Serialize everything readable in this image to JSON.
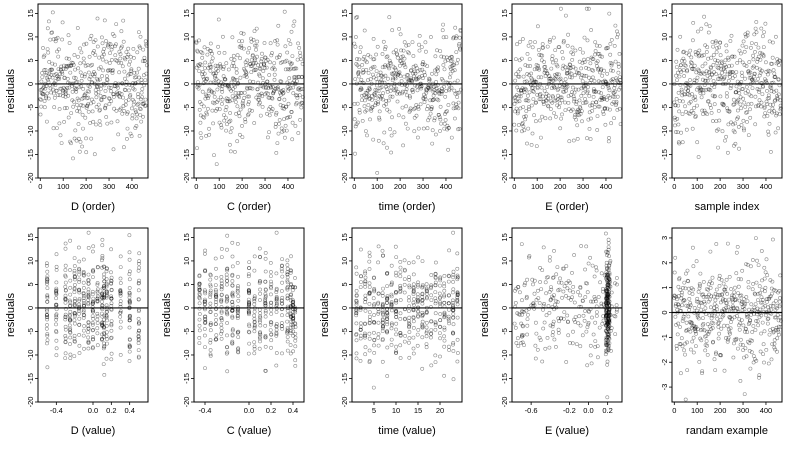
{
  "chart_data": [
    {
      "type": "scatter",
      "xlabel": "D (order)",
      "ylabel": "residuals",
      "xlim": [
        -10,
        470
      ],
      "ylim": [
        -20,
        17
      ],
      "xticks": [
        0,
        100,
        200,
        300,
        400
      ],
      "yticks": [
        -20,
        -15,
        -10,
        -5,
        0,
        5,
        10,
        15
      ],
      "reference_line_y": 0,
      "n_points": 470,
      "pattern": "order",
      "spread": 5.5,
      "series": [
        {
          "x_range": [
            0,
            465
          ],
          "y_range": [
            -19,
            16
          ]
        }
      ]
    },
    {
      "type": "scatter",
      "xlabel": "C (order)",
      "ylabel": "residuals",
      "xlim": [
        -10,
        470
      ],
      "ylim": [
        -20,
        17
      ],
      "xticks": [
        0,
        100,
        200,
        300,
        400
      ],
      "yticks": [
        -20,
        -15,
        -10,
        -5,
        0,
        5,
        10,
        15
      ],
      "reference_line_y": 0,
      "n_points": 470,
      "pattern": "order",
      "spread": 5.5,
      "series": [
        {
          "x_range": [
            0,
            465
          ],
          "y_range": [
            -19,
            16
          ]
        }
      ]
    },
    {
      "type": "scatter",
      "xlabel": "time (order)",
      "ylabel": "residuals",
      "xlim": [
        -10,
        470
      ],
      "ylim": [
        -20,
        17
      ],
      "xticks": [
        0,
        100,
        200,
        300,
        400
      ],
      "yticks": [
        -20,
        -15,
        -10,
        -5,
        0,
        5,
        10,
        15
      ],
      "reference_line_y": 0,
      "n_points": 470,
      "pattern": "order",
      "spread": 5.5,
      "series": [
        {
          "x_range": [
            0,
            465
          ],
          "y_range": [
            -19,
            16
          ]
        }
      ]
    },
    {
      "type": "scatter",
      "xlabel": "E (order)",
      "ylabel": "residuals",
      "xlim": [
        -10,
        470
      ],
      "ylim": [
        -20,
        17
      ],
      "xticks": [
        0,
        100,
        200,
        300,
        400
      ],
      "yticks": [
        -20,
        -15,
        -10,
        -5,
        0,
        5,
        10,
        15
      ],
      "reference_line_y": 0,
      "n_points": 470,
      "pattern": "order",
      "spread": 5.5,
      "series": [
        {
          "x_range": [
            0,
            465
          ],
          "y_range": [
            -19,
            16
          ]
        }
      ]
    },
    {
      "type": "scatter",
      "xlabel": "sample index",
      "ylabel": "residuals",
      "xlim": [
        -10,
        470
      ],
      "ylim": [
        -20,
        17
      ],
      "xticks": [
        0,
        100,
        200,
        300,
        400
      ],
      "yticks": [
        -20,
        -15,
        -10,
        -5,
        0,
        5,
        10,
        15
      ],
      "reference_line_y": 0,
      "n_points": 470,
      "pattern": "order",
      "spread": 5.5,
      "series": [
        {
          "x_range": [
            0,
            465
          ],
          "y_range": [
            -19,
            16
          ]
        }
      ]
    },
    {
      "type": "scatter",
      "xlabel": "D (value)",
      "ylabel": "residuals",
      "xlim": [
        -0.6,
        0.6
      ],
      "ylim": [
        -20,
        17
      ],
      "xticks": [
        -0.4,
        0.0,
        0.2,
        0.4
      ],
      "yticks": [
        -20,
        -15,
        -10,
        -5,
        0,
        5,
        10,
        15
      ],
      "reference_line_y": 0,
      "n_points": 470,
      "pattern": "clusters",
      "clusters": [
        -0.5,
        -0.4,
        -0.3,
        -0.25,
        -0.2,
        -0.15,
        -0.1,
        -0.05,
        0.0,
        0.05,
        0.1,
        0.12,
        0.15,
        0.2,
        0.3,
        0.4,
        0.5
      ],
      "spread": 5.5,
      "series": [
        {
          "x_range": [
            -0.55,
            0.55
          ],
          "y_range": [
            -19,
            16
          ]
        }
      ]
    },
    {
      "type": "scatter",
      "xlabel": "C (value)",
      "ylabel": "residuals",
      "xlim": [
        -0.5,
        0.5
      ],
      "ylim": [
        -20,
        17
      ],
      "xticks": [
        -0.4,
        0.0,
        0.2,
        0.4
      ],
      "yticks": [
        -20,
        -15,
        -10,
        -5,
        0,
        5,
        10,
        15
      ],
      "reference_line_y": 0,
      "n_points": 470,
      "pattern": "clusters",
      "clusters": [
        -0.45,
        -0.4,
        -0.35,
        -0.3,
        -0.25,
        -0.2,
        -0.15,
        -0.1,
        0.0,
        0.05,
        0.1,
        0.15,
        0.2,
        0.25,
        0.3,
        0.35,
        0.38,
        0.4,
        0.42
      ],
      "spread": 5.5,
      "series": [
        {
          "x_range": [
            -0.45,
            0.45
          ],
          "y_range": [
            -19,
            16
          ]
        }
      ]
    },
    {
      "type": "scatter",
      "xlabel": "time (value)",
      "ylabel": "residuals",
      "xlim": [
        0,
        25
      ],
      "ylim": [
        -20,
        17
      ],
      "xticks": [
        5,
        10,
        15,
        20
      ],
      "yticks": [
        -20,
        -15,
        -10,
        -5,
        0,
        5,
        10,
        15
      ],
      "reference_line_y": 0,
      "n_points": 470,
      "pattern": "clusters",
      "clusters": [
        1,
        2,
        3,
        4,
        5,
        6,
        7,
        8,
        9,
        10,
        11,
        12,
        13,
        14,
        15,
        16,
        17,
        18,
        19,
        20,
        21,
        22,
        23,
        24
      ],
      "spread": 5.5,
      "series": [
        {
          "x_range": [
            1,
            24
          ],
          "y_range": [
            -19,
            16
          ]
        }
      ]
    },
    {
      "type": "scatter",
      "xlabel": "E (value)",
      "ylabel": "residuals",
      "xlim": [
        -0.8,
        0.35
      ],
      "ylim": [
        -20,
        17
      ],
      "xticks": [
        -0.6,
        -0.2,
        0.0,
        0.2
      ],
      "yticks": [
        -20,
        -15,
        -10,
        -5,
        0,
        5,
        10,
        15
      ],
      "reference_line_y": 0,
      "n_points": 470,
      "pattern": "dense_right",
      "dense_at": 0.2,
      "spread": 5.5,
      "series": [
        {
          "x_range": [
            -0.78,
            0.3
          ],
          "y_range": [
            -19,
            16
          ]
        }
      ]
    },
    {
      "type": "scatter",
      "xlabel": "randam example",
      "ylabel": "residuals",
      "xlim": [
        -10,
        470
      ],
      "ylim": [
        -3.6,
        3.4
      ],
      "xticks": [
        0,
        100,
        200,
        300,
        400
      ],
      "yticks": [
        -3,
        -2,
        -1,
        0,
        1,
        2,
        3
      ],
      "reference_line_y": 0,
      "n_points": 470,
      "pattern": "order",
      "spread": 1.0,
      "series": [
        {
          "x_range": [
            0,
            465
          ],
          "y_range": [
            -3.5,
            3
          ]
        }
      ]
    }
  ]
}
